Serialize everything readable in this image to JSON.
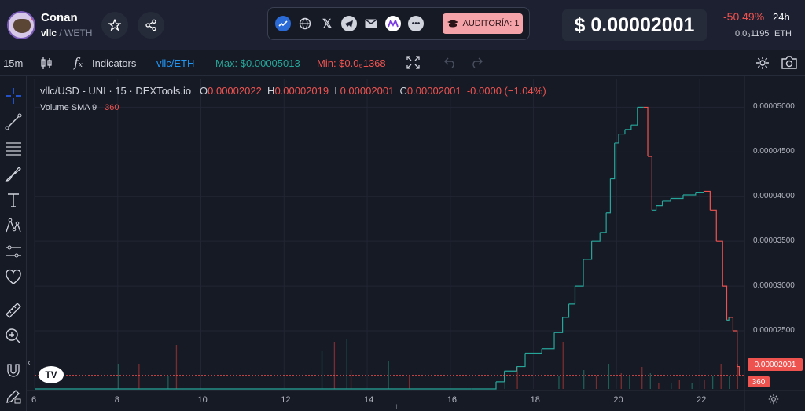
{
  "token": {
    "name": "Conan",
    "symbol": "vllc",
    "quote": "WETH"
  },
  "header": {
    "audit_label": "AUDITORÍA: 1",
    "price": "$ 0.00002001",
    "change_pct": "-50.49%",
    "change_period": "24h",
    "liquidity": "0.0₃1195",
    "liquidity_unit": "ETH",
    "links": [
      "tokenview-icon",
      "globe-icon",
      "x-icon",
      "telegram-icon",
      "mail-icon",
      "mcoin-icon",
      "more-icon"
    ]
  },
  "toolbar": {
    "interval": "15m",
    "indicators_label": "Indicators",
    "pair": "vllc/ETH",
    "max_label": "Max: $0.00005013",
    "min_label": "Min: $0.0₆1368"
  },
  "legend": {
    "symbol": "vllc/USD - UNI · 15 · DEXTools.io",
    "o_key": "O",
    "o_val": "0.00002022",
    "h_key": "H",
    "h_val": "0.00002019",
    "l_key": "L",
    "l_val": "0.00002001",
    "c_key": "C",
    "c_val": "0.00002001",
    "chg": "-0.0000 (−1.04%)",
    "volume_label": "Volume SMA 9",
    "volume_val": "360"
  },
  "price_label": "0.00002001",
  "volume_label_axis": "360",
  "colors": {
    "up": "#26a69a",
    "down": "#ef5350",
    "bg": "#161a25",
    "grid": "#222634"
  },
  "chart_data": {
    "type": "line",
    "title": "vllc/USD - UNI · 15 · DEXTools.io",
    "x_ticks": [
      "6",
      "8",
      "10",
      "12",
      "14",
      "16",
      "18",
      "20",
      "22"
    ],
    "y_ticks": [
      "0.00005000",
      "0.00004500",
      "0.00004000",
      "0.00003500",
      "0.00003000",
      "0.00002500"
    ],
    "ylim": [
      1.85e-05,
      5.32e-05
    ],
    "series": [
      {
        "x": [
          6.0,
          16.5,
          17.1,
          17.3,
          17.6,
          17.8,
          18.2,
          18.5,
          18.7,
          18.85,
          19.0,
          19.2,
          19.4,
          19.6,
          19.75,
          19.85,
          19.95,
          20.05,
          20.2,
          20.35,
          20.5,
          20.65,
          20.75,
          20.85,
          20.95,
          21.1,
          21.3,
          21.6,
          21.9,
          22.1,
          22.25,
          22.4,
          22.55,
          22.65,
          22.7,
          22.8,
          22.9,
          22.95
        ],
        "y": [
          1.85e-05,
          1.85e-05,
          1.93e-05,
          2.05e-05,
          2.1e-05,
          2.25e-05,
          2.3e-05,
          2.48e-05,
          2.65e-05,
          2.8e-05,
          3e-05,
          3.3e-05,
          3.5e-05,
          3.6e-05,
          3.82e-05,
          4.2e-05,
          4.6e-05,
          4.7e-05,
          4.75e-05,
          4.8e-05,
          5e-05,
          5e-05,
          4.45e-05,
          3.85e-05,
          3.9e-05,
          3.95e-05,
          3.98e-05,
          4.02e-05,
          4.05e-05,
          4.06e-05,
          3.85e-05,
          3.5e-05,
          3e-05,
          2.62e-05,
          2.65e-05,
          2.5e-05,
          2.1e-05,
          2e-05
        ]
      }
    ],
    "volume": {
      "x": [
        8.0,
        8.5,
        9.2,
        9.4,
        12.9,
        13.2,
        13.5,
        13.6,
        14.5,
        15.0,
        17.3,
        17.6,
        18.6,
        18.7,
        19.2,
        19.5,
        19.8,
        20.1,
        20.3,
        20.6,
        20.8,
        21.0,
        21.3,
        21.5,
        21.8,
        22.1,
        22.3,
        22.5,
        22.7,
        22.9
      ],
      "values": [
        40,
        40,
        20,
        70,
        60,
        75,
        80,
        30,
        45,
        20,
        10,
        35,
        20,
        75,
        30,
        20,
        40,
        25,
        20,
        35,
        25,
        10,
        10,
        15,
        10,
        15,
        20,
        40,
        20,
        40
      ]
    }
  }
}
